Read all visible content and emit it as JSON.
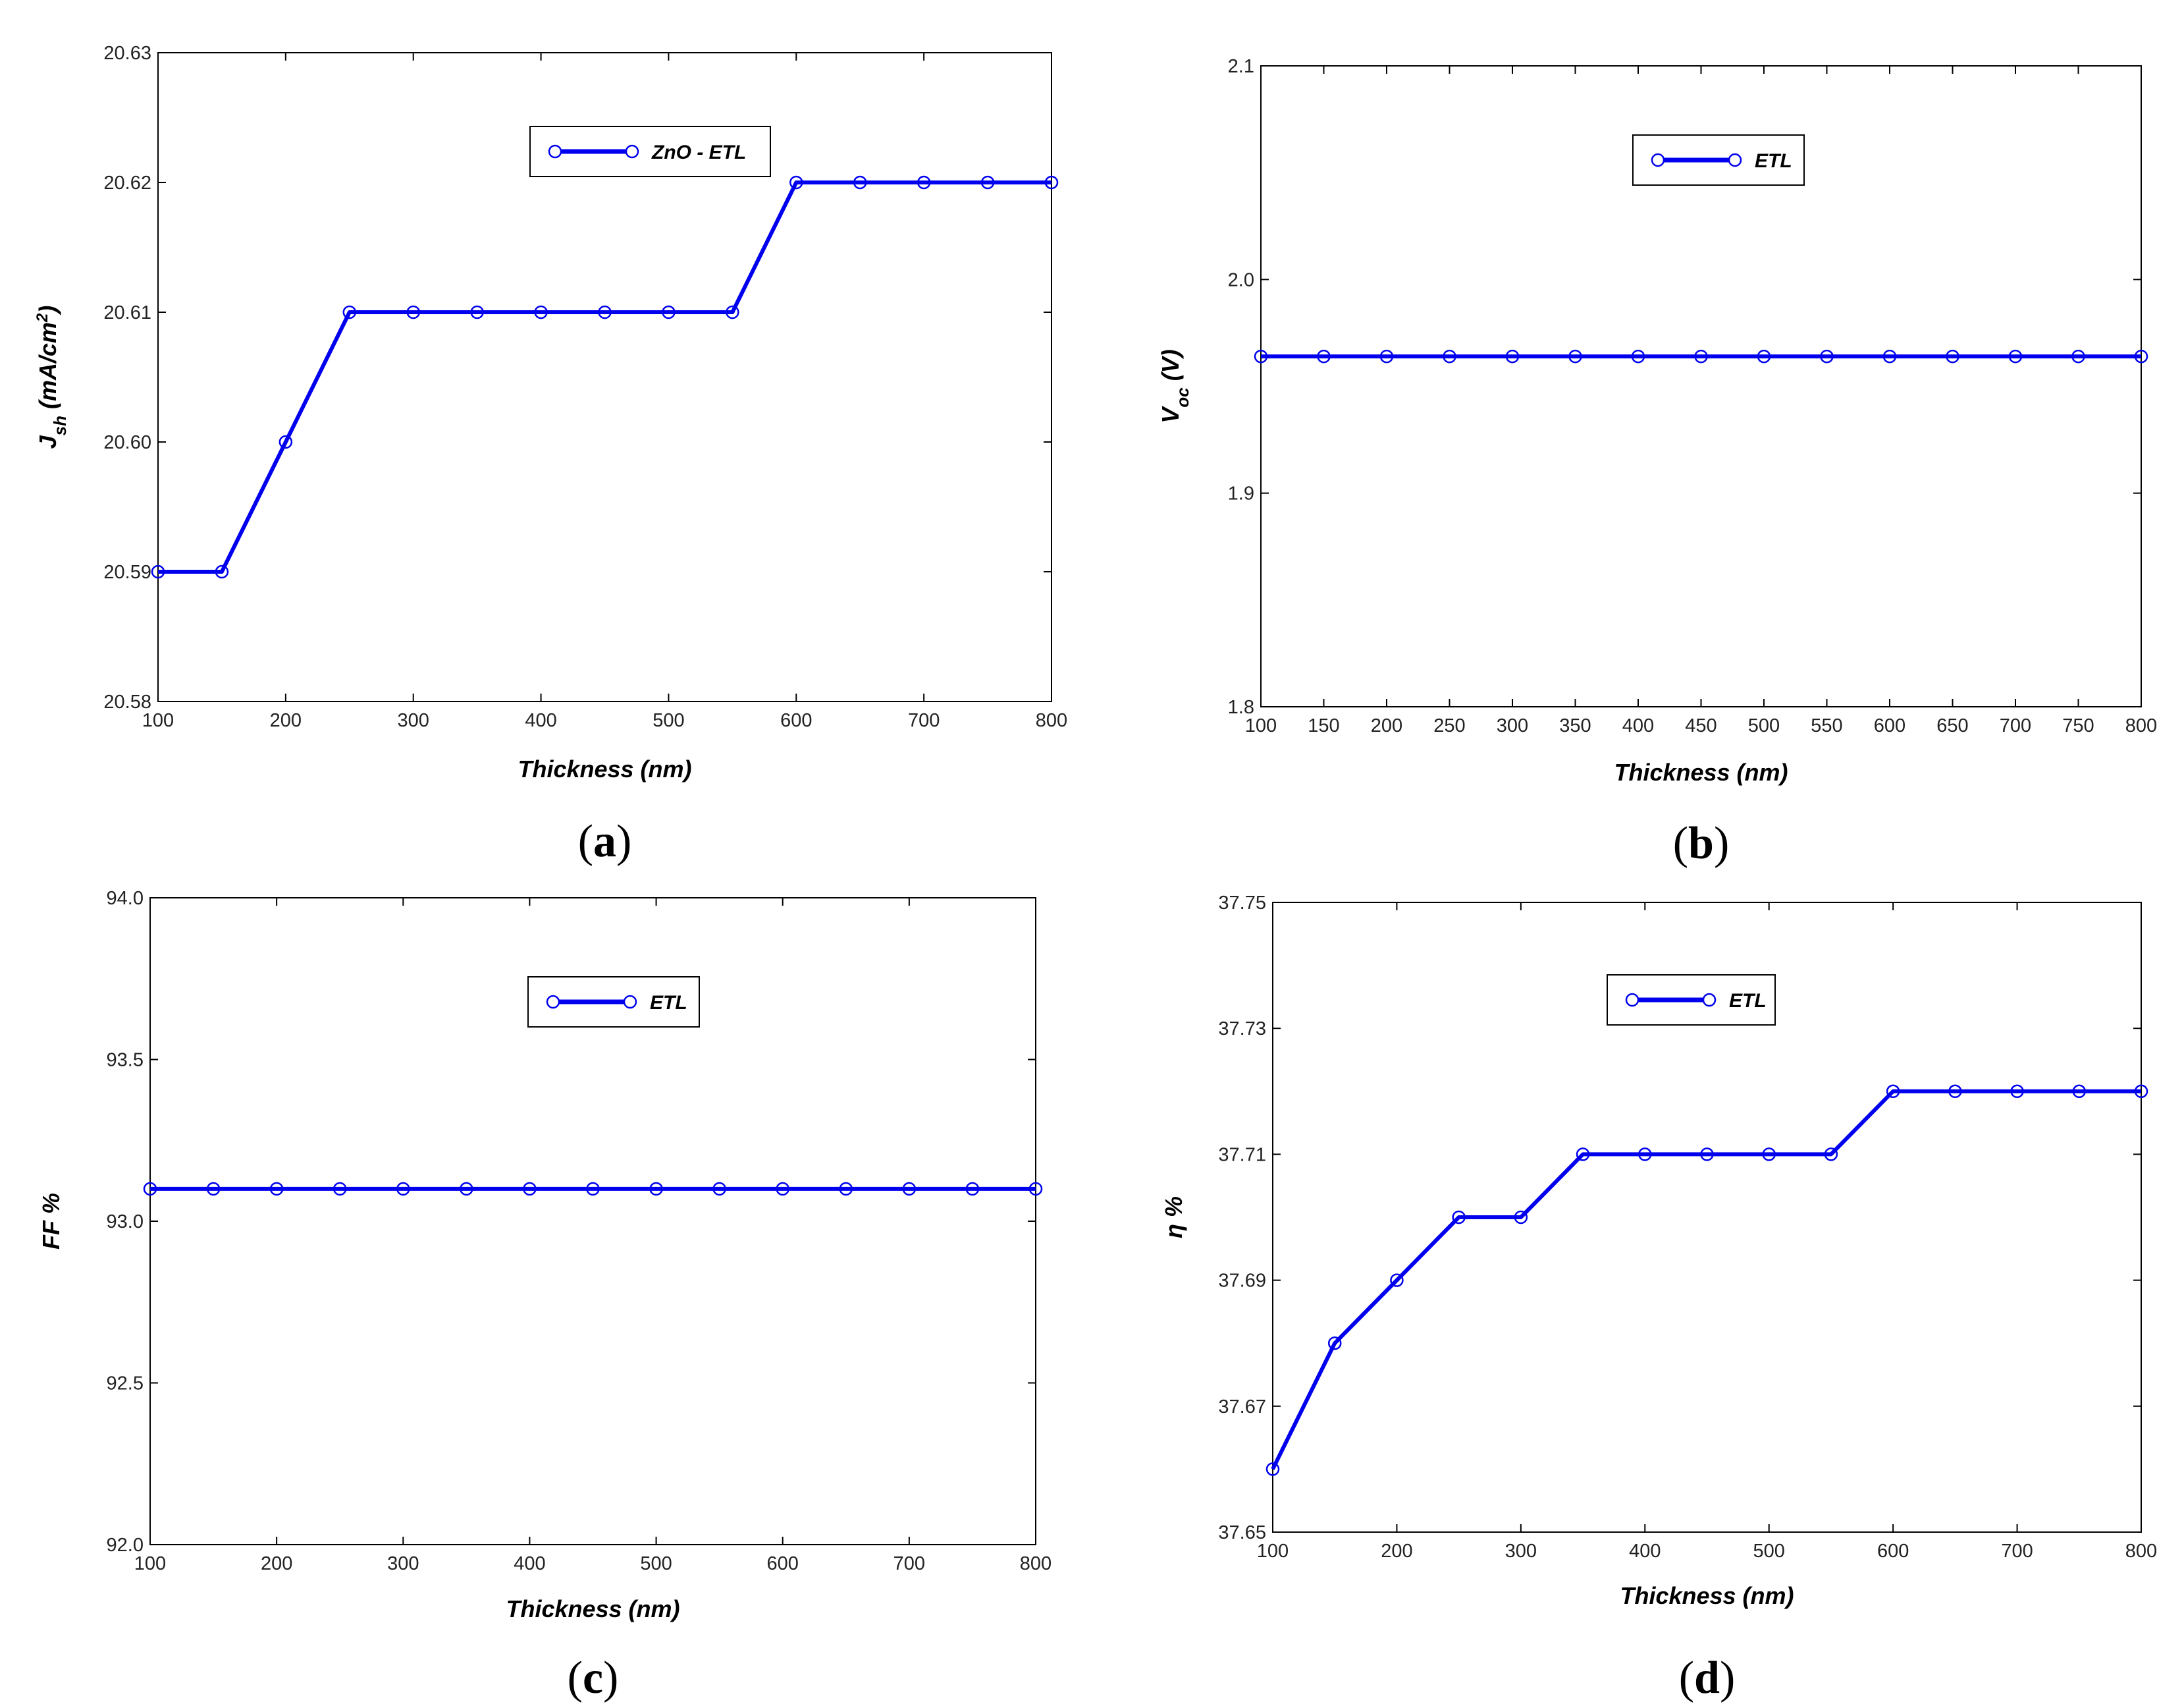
{
  "figure": {
    "background": "#ffffff",
    "series_color": "#0000ee"
  },
  "chart_data": [
    {
      "id": "a",
      "type": "line",
      "panel_label": {
        "open": "(",
        "letter": "a",
        "close": ")"
      },
      "xlabel": "Thickness (nm)",
      "ylabel": {
        "main": "J",
        "sub": "sh",
        "rest": " (mA/cm",
        "sup": "2",
        "tail": ")"
      },
      "xlim": [
        100,
        800
      ],
      "ylim": [
        20.58,
        20.63
      ],
      "xticks": [
        "100",
        "200",
        "300",
        "400",
        "500",
        "600",
        "700",
        "800"
      ],
      "yticks": [
        "20.58",
        "20.59",
        "20.60",
        "20.61",
        "20.62",
        "20.63"
      ],
      "legend": {
        "label": "ZnO - ETL",
        "position": "top-center"
      },
      "series": [
        {
          "name": "ZnO - ETL",
          "x": [
            100,
            150,
            200,
            250,
            300,
            350,
            400,
            450,
            500,
            550,
            600,
            650,
            700,
            750,
            800
          ],
          "y": [
            20.59,
            20.59,
            20.6,
            20.61,
            20.61,
            20.61,
            20.61,
            20.61,
            20.61,
            20.61,
            20.62,
            20.62,
            20.62,
            20.62,
            20.62
          ]
        }
      ]
    },
    {
      "id": "b",
      "type": "line",
      "panel_label": {
        "open": "(",
        "letter": "b",
        "close": ")"
      },
      "xlabel": "Thickness (nm)",
      "ylabel": {
        "main": "V",
        "sub": "oc",
        "rest": " (V)",
        "sup": "",
        "tail": ""
      },
      "xlim": [
        100,
        800
      ],
      "ylim": [
        1.8,
        2.1
      ],
      "xticks": [
        "100",
        "150",
        "200",
        "250",
        "300",
        "350",
        "400",
        "450",
        "500",
        "550",
        "600",
        "650",
        "700",
        "750",
        "800"
      ],
      "yticks": [
        "1.8",
        "1.9",
        "2.0",
        "2.1"
      ],
      "legend": {
        "label": "ETL",
        "position": "top-center"
      },
      "series": [
        {
          "name": "ETL",
          "x": [
            100,
            150,
            200,
            250,
            300,
            350,
            400,
            450,
            500,
            550,
            600,
            650,
            700,
            750,
            800
          ],
          "y": [
            1.964,
            1.964,
            1.964,
            1.964,
            1.964,
            1.964,
            1.964,
            1.964,
            1.964,
            1.964,
            1.964,
            1.964,
            1.964,
            1.964,
            1.964
          ]
        }
      ]
    },
    {
      "id": "c",
      "type": "line",
      "panel_label": {
        "open": "(",
        "letter": "c",
        "close": ")"
      },
      "xlabel": "Thickness (nm)",
      "ylabel": {
        "main": "FF %",
        "sub": "",
        "rest": "",
        "sup": "",
        "tail": ""
      },
      "xlim": [
        100,
        800
      ],
      "ylim": [
        92.0,
        94.0
      ],
      "xticks": [
        "100",
        "200",
        "300",
        "400",
        "500",
        "600",
        "700",
        "800"
      ],
      "yticks": [
        "92.0",
        "92.5",
        "93.0",
        "93.5",
        "94.0"
      ],
      "legend": {
        "label": "ETL",
        "position": "top-center"
      },
      "series": [
        {
          "name": "ETL",
          "x": [
            100,
            150,
            200,
            250,
            300,
            350,
            400,
            450,
            500,
            550,
            600,
            650,
            700,
            750,
            800
          ],
          "y": [
            93.1,
            93.1,
            93.1,
            93.1,
            93.1,
            93.1,
            93.1,
            93.1,
            93.1,
            93.1,
            93.1,
            93.1,
            93.1,
            93.1,
            93.1
          ]
        }
      ]
    },
    {
      "id": "d",
      "type": "line",
      "panel_label": {
        "open": "(",
        "letter": "d",
        "close": ")"
      },
      "xlabel": "Thickness (nm)",
      "ylabel": {
        "main": "η %",
        "sub": "",
        "rest": "",
        "sup": "",
        "tail": ""
      },
      "xlim": [
        100,
        800
      ],
      "ylim": [
        37.65,
        37.75
      ],
      "xticks": [
        "100",
        "200",
        "300",
        "400",
        "500",
        "600",
        "700",
        "800"
      ],
      "yticks": [
        "37.65",
        "37.67",
        "37.69",
        "37.71",
        "37.73",
        "37.75"
      ],
      "legend": {
        "label": "ETL",
        "position": "top-center"
      },
      "series": [
        {
          "name": "ETL",
          "x": [
            100,
            150,
            200,
            250,
            300,
            350,
            400,
            450,
            500,
            550,
            600,
            650,
            700,
            750,
            800
          ],
          "y": [
            37.66,
            37.68,
            37.69,
            37.7,
            37.7,
            37.71,
            37.71,
            37.71,
            37.71,
            37.71,
            37.72,
            37.72,
            37.72,
            37.72,
            37.72
          ]
        }
      ]
    }
  ]
}
